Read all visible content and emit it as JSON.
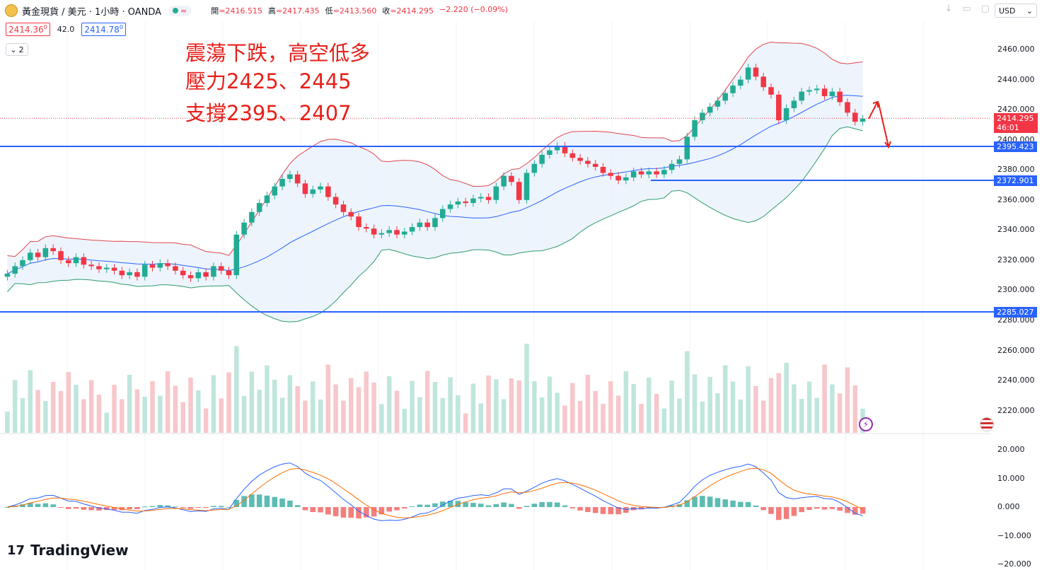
{
  "header": {
    "symbol": "黃金現貨 / 美元 · 1小時 · OANDA",
    "ohlc": {
      "open_label": "開",
      "open": "=2416.515",
      "high_label": "高",
      "high": "=2417.435",
      "low_label": "低",
      "low": "=2413.560",
      "close_label": "收",
      "close": "=2414.295",
      "change": "−2.220 (−0.09%)"
    },
    "bid": "2414.36",
    "bid_sup": "0",
    "spread": "42.0",
    "ask": "2414.78",
    "ask_sup": "0",
    "indicator_count": "2",
    "currency": "USD"
  },
  "annotations": {
    "line1": "震蕩下跌，高空低多",
    "line2": "壓力2425、2445",
    "line3": "支撐2395、2407"
  },
  "price_axis": {
    "ticks": [
      "2460.000",
      "2440.000",
      "2420.000",
      "2400.000",
      "2380.000",
      "2360.000",
      "2340.000",
      "2320.000",
      "2300.000",
      "2280.000",
      "2260.000",
      "2240.000",
      "2220.000"
    ],
    "current_price": "2414.295",
    "countdown": "46:01",
    "level_1": "2395.423",
    "level_2": "2372.901",
    "level_3": "2285.027"
  },
  "macd_axis": {
    "ticks": [
      "20.000",
      "10.000",
      "0.000",
      "−10.000",
      "−20.000"
    ]
  },
  "brand": {
    "name": "TradingView"
  },
  "icons": {
    "symbol": "gold-coin-icon",
    "lightning": "lightning-icon",
    "flag": "us-flag-icon"
  },
  "colors": {
    "up": "#22ab94",
    "down": "#f23645",
    "band": "#2962ff",
    "upper_band": "#e0464d",
    "lower_band": "#2e9b6e",
    "annotation": "#e8201a"
  },
  "chart_data": {
    "type": "candlestick",
    "timeframe": "1h",
    "ylim": [
      2280,
      2465
    ],
    "close": [
      2311,
      2316,
      2320,
      2325,
      2322,
      2328,
      2326,
      2320,
      2318,
      2322,
      2317,
      2316,
      2314,
      2315,
      2313,
      2310,
      2312,
      2309,
      2317,
      2315,
      2318,
      2316,
      2313,
      2310,
      2308,
      2312,
      2309,
      2316,
      2313,
      2310,
      2337,
      2345,
      2352,
      2358,
      2363,
      2369,
      2374,
      2377,
      2371,
      2364,
      2367,
      2369,
      2362,
      2357,
      2352,
      2349,
      2342,
      2341,
      2337,
      2338,
      2340,
      2337,
      2339,
      2342,
      2345,
      2342,
      2348,
      2354,
      2357,
      2359,
      2358,
      2361,
      2362,
      2360,
      2369,
      2376,
      2372,
      2360,
      2378,
      2384,
      2390,
      2393,
      2396,
      2391,
      2388,
      2386,
      2384,
      2382,
      2378,
      2376,
      2373,
      2375,
      2379,
      2377,
      2379,
      2377,
      2380,
      2384,
      2387,
      2402,
      2413,
      2418,
      2422,
      2426,
      2431,
      2436,
      2440,
      2448,
      2442,
      2435,
      2430,
      2413,
      2421,
      2426,
      2432,
      2433,
      2434,
      2429,
      2432,
      2425,
      2418,
      2412,
      2414
    ],
    "bands": {
      "upper_start": 2330,
      "lower_start": 2285
    },
    "levels": [
      2395.423,
      2372.901,
      2285.027
    ],
    "macd_range": [
      -20,
      20
    ]
  }
}
